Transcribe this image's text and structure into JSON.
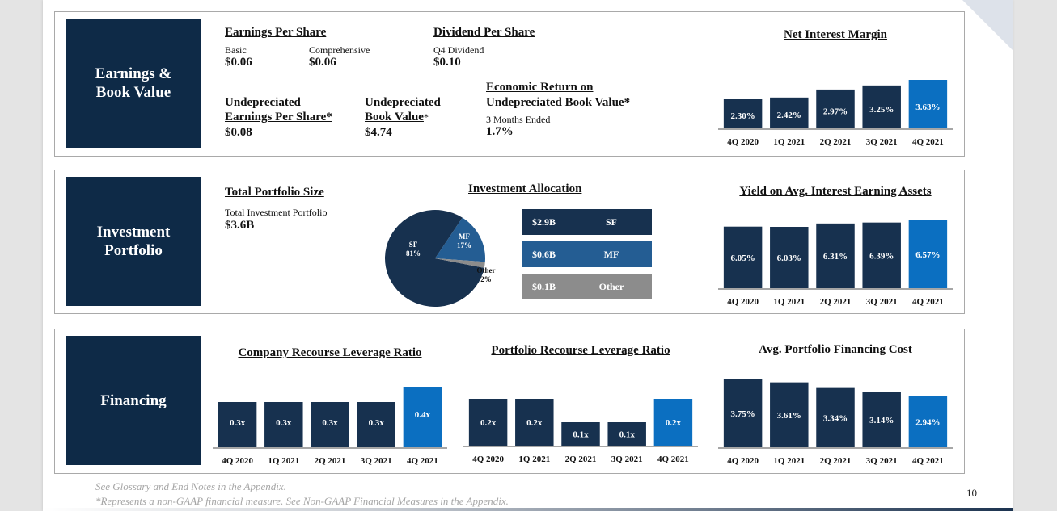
{
  "page_number": "10",
  "colors": {
    "navy": "#0e2a47",
    "bar_navy": "#17314f",
    "highlight_blue": "#0b6fc1",
    "mf_blue": "#245d93",
    "other_gray": "#8c8c8c"
  },
  "sections": {
    "earnings": {
      "label_line1": "Earnings &",
      "label_line2": "Book Value",
      "eps": {
        "title": "Earnings Per Share",
        "basic_label": "Basic",
        "basic_value": "$0.06",
        "comprehensive_label": "Comprehensive",
        "comprehensive_value": "$0.06"
      },
      "dps": {
        "title": "Dividend Per Share",
        "q4_label": "Q4 Dividend",
        "q4_value": "$0.10"
      },
      "undep_eps": {
        "title_line1": "Undepreciated",
        "title_line2": "Earnings Per Share*",
        "value": "$0.08"
      },
      "undep_bv": {
        "title_line1": "Undepreciated",
        "title_line2": "Book Value",
        "asterisk": "*",
        "value": "$4.74"
      },
      "econ_return": {
        "title_line1": "Economic Return on",
        "title_line2": "Undepreciated Book Value*",
        "period_label": "3 Months Ended",
        "value": "1.7%"
      }
    },
    "investment": {
      "label_line1": "Investment",
      "label_line2": "Portfolio",
      "total": {
        "title": "Total Portfolio Size",
        "sub_label": "Total Investment Portfolio",
        "value": "$3.6B"
      },
      "allocation": {
        "title": "Investment Allocation",
        "rows": [
          {
            "amount": "$2.9B",
            "name": "SF"
          },
          {
            "amount": "$0.6B",
            "name": "MF"
          },
          {
            "amount": "$0.1B",
            "name": "Other"
          }
        ]
      }
    },
    "financing": {
      "label": "Financing"
    }
  },
  "footnotes": {
    "line1": "See Glossary and End Notes in the Appendix.",
    "line2": "*Represents a non-GAAP financial measure. See Non-GAAP Financial Measures in the Appendix."
  },
  "chart_data": [
    {
      "id": "nim",
      "type": "bar",
      "title": "Net Interest Margin",
      "categories": [
        "4Q 2020",
        "1Q 2021",
        "2Q 2021",
        "3Q 2021",
        "4Q 2021"
      ],
      "values": [
        2.3,
        2.42,
        2.97,
        3.25,
        3.63
      ],
      "labels": [
        "2.30%",
        "2.42%",
        "2.97%",
        "3.25%",
        "3.63%"
      ],
      "highlight_index": 4,
      "ylim": [
        0,
        3.8
      ],
      "xlabel": "",
      "ylabel": "",
      "grid": false
    },
    {
      "id": "yield",
      "type": "bar",
      "title": "Yield on Avg. Interest Earning Assets",
      "categories": [
        "4Q 2020",
        "1Q 2021",
        "2Q 2021",
        "3Q 2021",
        "4Q 2021"
      ],
      "values": [
        6.05,
        6.03,
        6.31,
        6.39,
        6.57
      ],
      "labels": [
        "6.05%",
        "6.03%",
        "6.31%",
        "6.39%",
        "6.57%"
      ],
      "highlight_index": 4,
      "ylim": [
        0,
        6.6
      ],
      "xlabel": "",
      "ylabel": "",
      "grid": false
    },
    {
      "id": "pie",
      "type": "pie",
      "title": "Investment Allocation",
      "slices": [
        {
          "name": "SF",
          "value": 81,
          "label": "81%"
        },
        {
          "name": "MF",
          "value": 17,
          "label": "17%"
        },
        {
          "name": "Other",
          "value": 2,
          "label": "2%"
        }
      ]
    },
    {
      "id": "company_lev",
      "type": "bar",
      "title": "Company Recourse Leverage Ratio",
      "categories": [
        "4Q 2020",
        "1Q 2021",
        "2Q 2021",
        "3Q 2021",
        "4Q 2021"
      ],
      "values": [
        0.3,
        0.3,
        0.3,
        0.3,
        0.4
      ],
      "labels": [
        "0.3x",
        "0.3x",
        "0.3x",
        "0.3x",
        "0.4x"
      ],
      "highlight_index": 4,
      "ylim": [
        0,
        0.4
      ],
      "xlabel": "",
      "ylabel": "",
      "grid": false
    },
    {
      "id": "portfolio_lev",
      "type": "bar",
      "title": "Portfolio Recourse Leverage Ratio",
      "categories": [
        "4Q 2020",
        "1Q 2021",
        "2Q 2021",
        "3Q 2021",
        "4Q 2021"
      ],
      "values": [
        0.2,
        0.2,
        0.1,
        0.1,
        0.2
      ],
      "labels": [
        "0.2x",
        "0.2x",
        "0.1x",
        "0.1x",
        "0.2x"
      ],
      "highlight_index": 4,
      "ylim": [
        0,
        0.2
      ],
      "xlabel": "",
      "ylabel": "",
      "grid": false
    },
    {
      "id": "fin_cost",
      "type": "bar",
      "title": "Avg. Portfolio Financing Cost",
      "categories": [
        "4Q 2020",
        "1Q 2021",
        "2Q 2021",
        "3Q 2021",
        "4Q 2021"
      ],
      "values": [
        3.75,
        3.61,
        3.34,
        3.14,
        2.94
      ],
      "labels": [
        "3.75%",
        "3.61%",
        "3.34%",
        "3.14%",
        "2.94%"
      ],
      "highlight_index": 4,
      "ylim": [
        0,
        3.8
      ],
      "xlabel": "",
      "ylabel": "",
      "grid": false
    }
  ]
}
